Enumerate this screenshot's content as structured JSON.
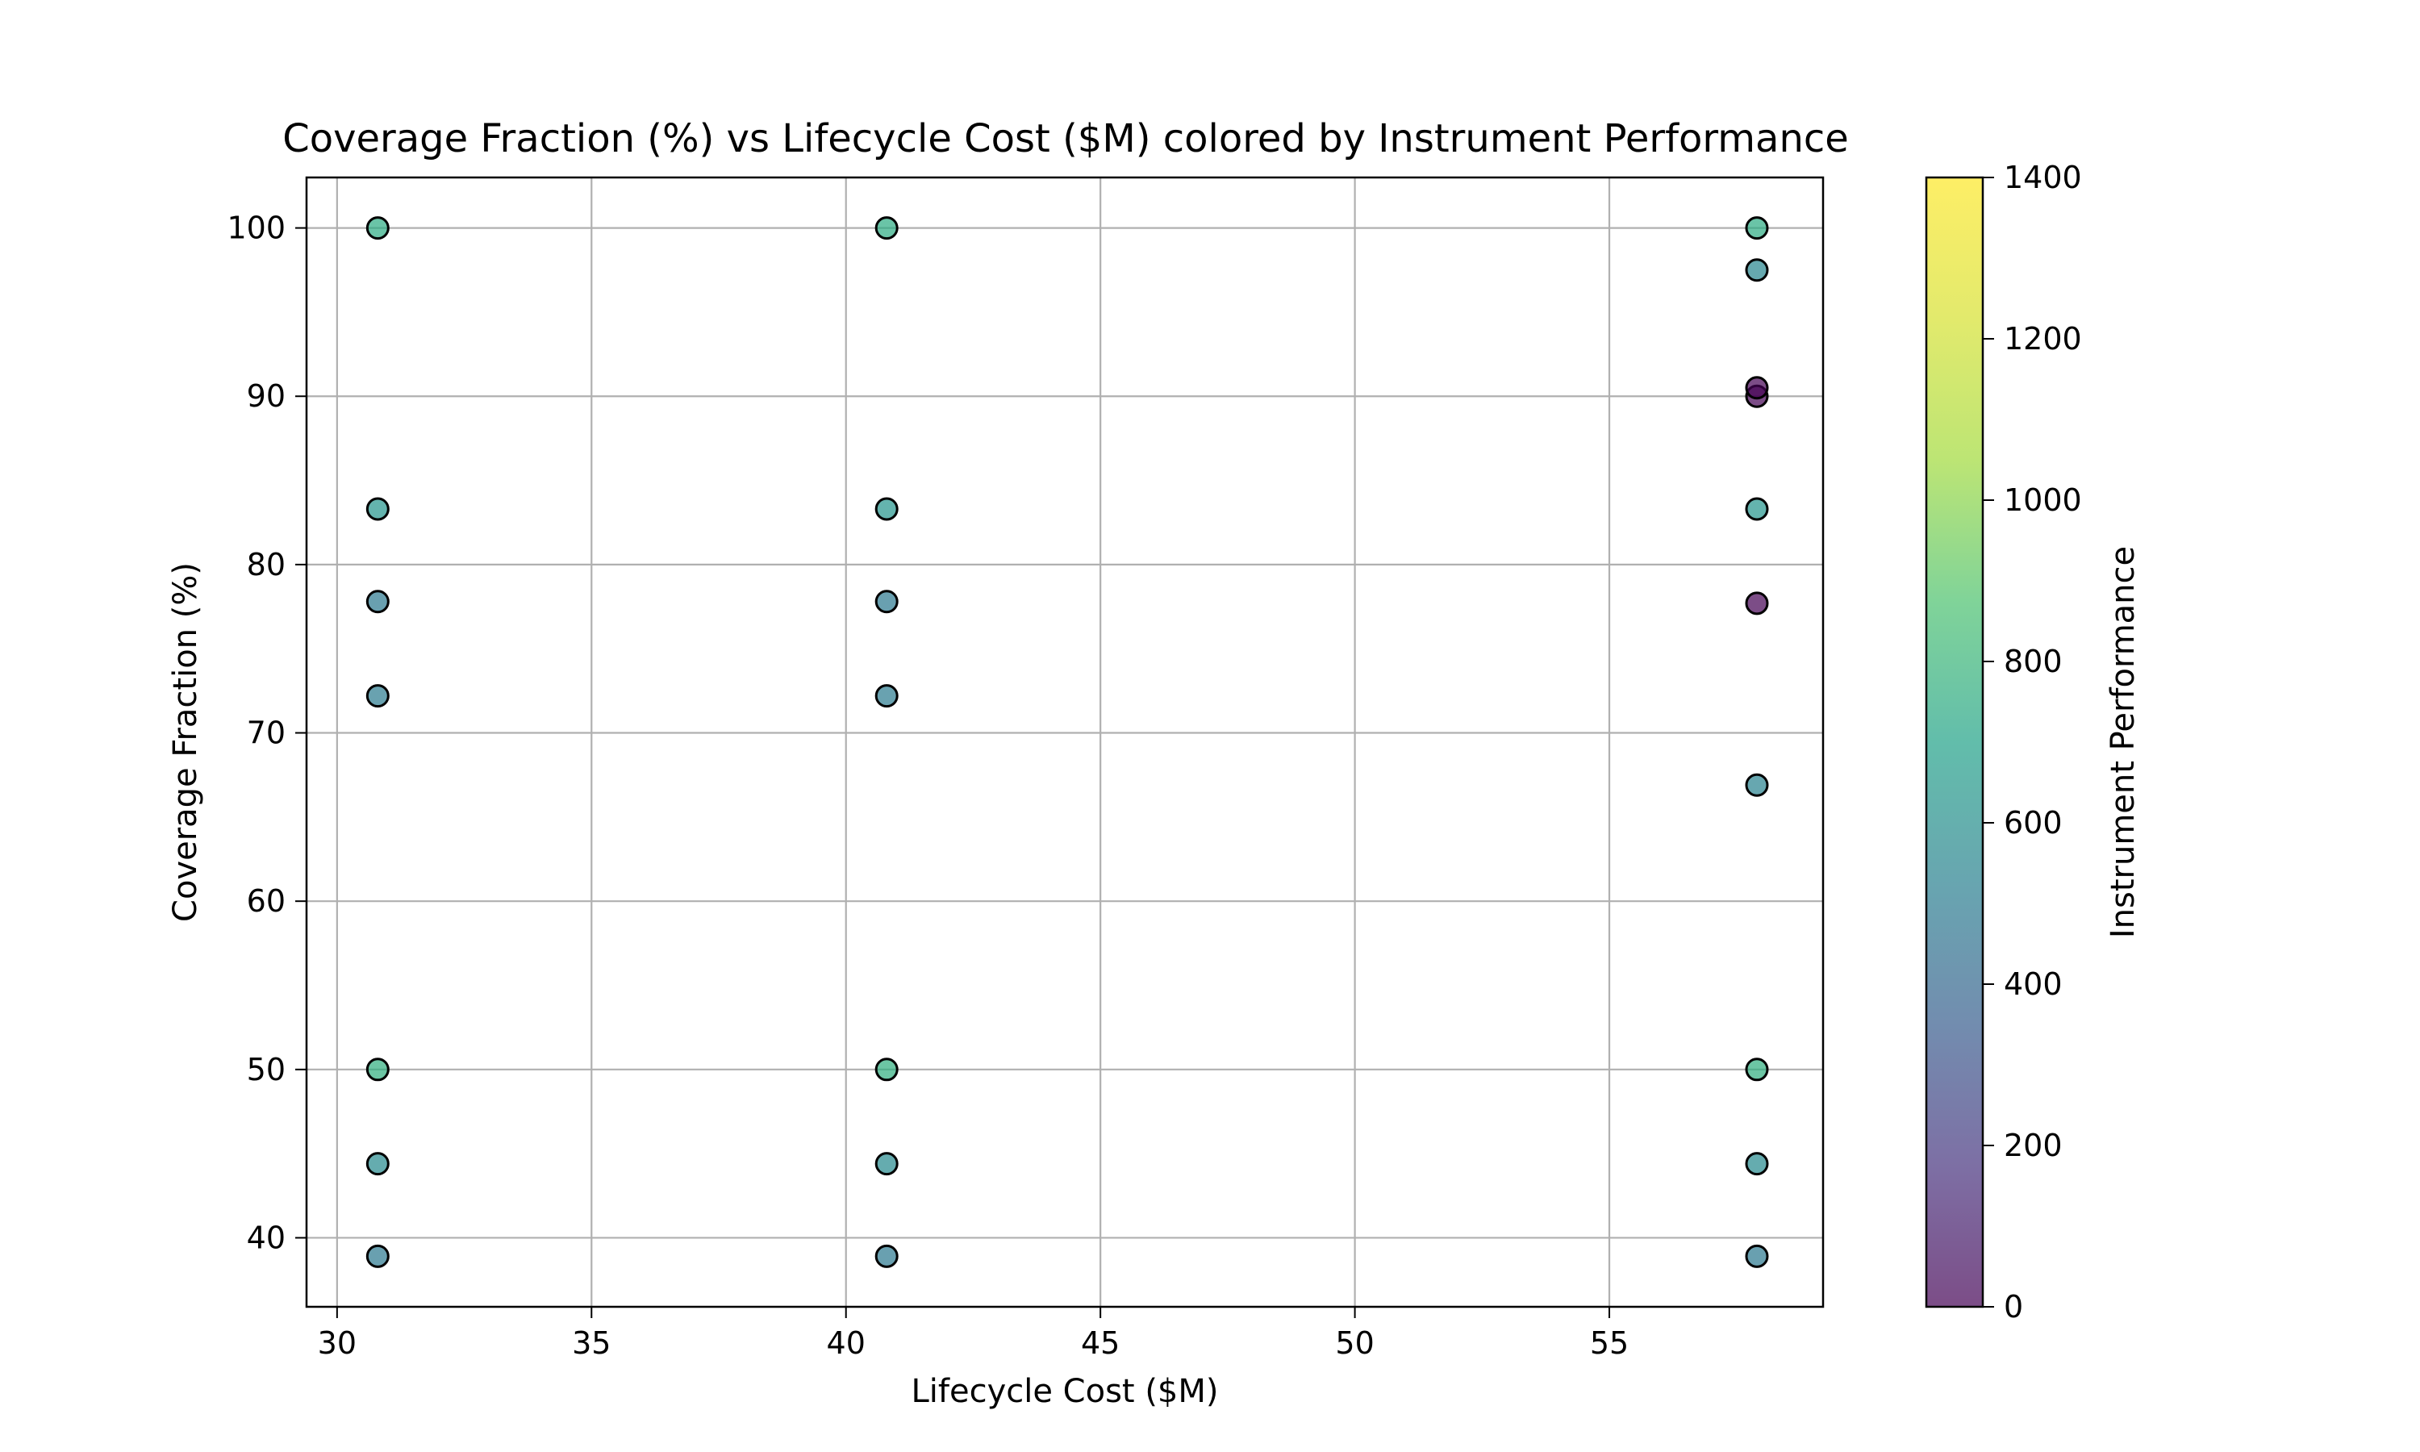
{
  "chart_data": {
    "type": "scatter",
    "title": "Coverage Fraction (%) vs Lifecycle Cost ($M) colored by Instrument Performance",
    "xlabel": "Lifecycle Cost ($M)",
    "ylabel": "Coverage Fraction (%)",
    "xlim": [
      29.4,
      59.2
    ],
    "ylim": [
      35.9,
      103.0
    ],
    "xticks": [
      30,
      35,
      40,
      45,
      50,
      55
    ],
    "yticks": [
      40,
      50,
      60,
      70,
      80,
      90,
      100
    ],
    "grid": true,
    "legend": "none",
    "colorbar": {
      "label": "Instrument Performance",
      "range": [
        0,
        1400
      ],
      "ticks": [
        0,
        200,
        400,
        600,
        800,
        1000,
        1200,
        1400
      ],
      "colormap": "viridis",
      "alpha": 0.7
    },
    "points": [
      {
        "x": 30.8,
        "y": 100.0,
        "c": 860
      },
      {
        "x": 30.8,
        "y": 83.3,
        "c": 720
      },
      {
        "x": 30.8,
        "y": 77.8,
        "c": 560
      },
      {
        "x": 30.8,
        "y": 72.2,
        "c": 580
      },
      {
        "x": 30.8,
        "y": 50.0,
        "c": 880
      },
      {
        "x": 30.8,
        "y": 44.4,
        "c": 660
      },
      {
        "x": 30.8,
        "y": 38.9,
        "c": 560
      },
      {
        "x": 40.8,
        "y": 100.0,
        "c": 860
      },
      {
        "x": 40.8,
        "y": 83.3,
        "c": 720
      },
      {
        "x": 40.8,
        "y": 77.8,
        "c": 560
      },
      {
        "x": 40.8,
        "y": 72.2,
        "c": 580
      },
      {
        "x": 40.8,
        "y": 50.0,
        "c": 880
      },
      {
        "x": 40.8,
        "y": 44.4,
        "c": 660
      },
      {
        "x": 40.8,
        "y": 38.9,
        "c": 560
      },
      {
        "x": 57.9,
        "y": 100.0,
        "c": 860
      },
      {
        "x": 57.9,
        "y": 97.5,
        "c": 640
      },
      {
        "x": 57.9,
        "y": 90.0,
        "c": 0
      },
      {
        "x": 57.9,
        "y": 90.5,
        "c": 0
      },
      {
        "x": 57.9,
        "y": 83.3,
        "c": 720
      },
      {
        "x": 57.9,
        "y": 77.7,
        "c": 0
      },
      {
        "x": 57.9,
        "y": 66.9,
        "c": 620
      },
      {
        "x": 57.9,
        "y": 50.0,
        "c": 880
      },
      {
        "x": 57.9,
        "y": 44.4,
        "c": 660
      },
      {
        "x": 57.9,
        "y": 38.9,
        "c": 560
      }
    ]
  }
}
